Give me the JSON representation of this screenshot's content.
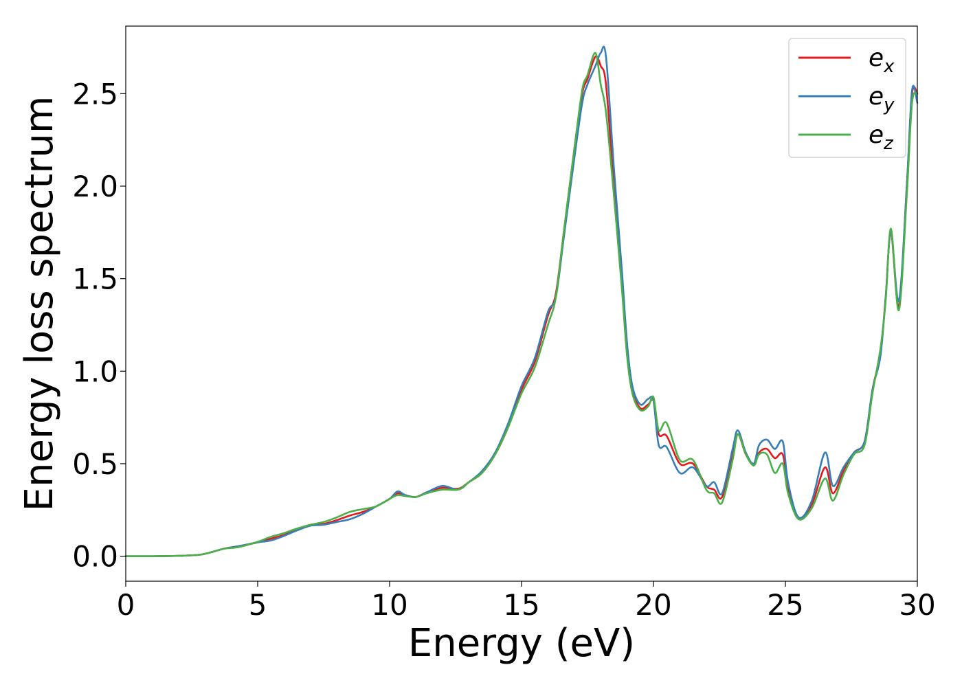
{
  "chart_data": {
    "type": "line",
    "title": "",
    "xlabel": "Energy (eV)",
    "ylabel": "Energy loss spectrum",
    "xlim": [
      0,
      30
    ],
    "ylim": [
      -0.135,
      2.865
    ],
    "xticks": [
      0,
      5,
      10,
      15,
      20,
      25,
      30
    ],
    "xtick_labels": [
      "0",
      "5",
      "10",
      "15",
      "20",
      "25",
      "30"
    ],
    "yticks": [
      0.0,
      0.5,
      1.0,
      1.5,
      2.0,
      2.5
    ],
    "ytick_labels": [
      "0.0",
      "0.5",
      "1.0",
      "1.5",
      "2.0",
      "2.5"
    ],
    "grid": false,
    "legend_position": "top-right",
    "series": [
      {
        "name": "e",
        "subscript": "x",
        "color": "#e41a1c",
        "points": [
          [
            0,
            0
          ],
          [
            1,
            0
          ],
          [
            2,
            0.002
          ],
          [
            2.8,
            0.008
          ],
          [
            3.2,
            0.02
          ],
          [
            3.7,
            0.04
          ],
          [
            4.3,
            0.055
          ],
          [
            5,
            0.075
          ],
          [
            5.5,
            0.095
          ],
          [
            6,
            0.115
          ],
          [
            6.5,
            0.145
          ],
          [
            7,
            0.17
          ],
          [
            7.5,
            0.175
          ],
          [
            8,
            0.195
          ],
          [
            8.5,
            0.22
          ],
          [
            9,
            0.24
          ],
          [
            9.5,
            0.27
          ],
          [
            10,
            0.31
          ],
          [
            10.3,
            0.34
          ],
          [
            10.6,
            0.33
          ],
          [
            11,
            0.32
          ],
          [
            11.4,
            0.345
          ],
          [
            12,
            0.37
          ],
          [
            12.6,
            0.365
          ],
          [
            13,
            0.4
          ],
          [
            13.5,
            0.45
          ],
          [
            14,
            0.55
          ],
          [
            14.5,
            0.7
          ],
          [
            15,
            0.9
          ],
          [
            15.5,
            1.05
          ],
          [
            16,
            1.3
          ],
          [
            16.3,
            1.42
          ],
          [
            16.6,
            1.75
          ],
          [
            17,
            2.2
          ],
          [
            17.3,
            2.5
          ],
          [
            17.5,
            2.58
          ],
          [
            17.8,
            2.7
          ],
          [
            18,
            2.65
          ],
          [
            18.2,
            2.55
          ],
          [
            18.5,
            2.0
          ],
          [
            18.8,
            1.5
          ],
          [
            19,
            1.1
          ],
          [
            19.2,
            0.9
          ],
          [
            19.5,
            0.8
          ],
          [
            19.8,
            0.82
          ],
          [
            20,
            0.84
          ],
          [
            20.2,
            0.66
          ],
          [
            20.5,
            0.65
          ],
          [
            21,
            0.5
          ],
          [
            21.5,
            0.5
          ],
          [
            22,
            0.38
          ],
          [
            22.3,
            0.36
          ],
          [
            22.6,
            0.32
          ],
          [
            23,
            0.55
          ],
          [
            23.2,
            0.66
          ],
          [
            23.5,
            0.55
          ],
          [
            23.8,
            0.5
          ],
          [
            24,
            0.56
          ],
          [
            24.3,
            0.58
          ],
          [
            24.6,
            0.53
          ],
          [
            24.9,
            0.55
          ],
          [
            25.1,
            0.37
          ],
          [
            25.5,
            0.21
          ],
          [
            26,
            0.28
          ],
          [
            26.5,
            0.48
          ],
          [
            26.8,
            0.34
          ],
          [
            27.2,
            0.46
          ],
          [
            27.6,
            0.56
          ],
          [
            28,
            0.62
          ],
          [
            28.3,
            0.9
          ],
          [
            28.6,
            1.1
          ],
          [
            28.8,
            1.4
          ],
          [
            29,
            1.75
          ],
          [
            29.3,
            1.35
          ],
          [
            29.6,
            2.0
          ],
          [
            29.8,
            2.5
          ],
          [
            30,
            2.5
          ]
        ]
      },
      {
        "name": "e",
        "subscript": "y",
        "color": "#377eb8",
        "points": [
          [
            0,
            0
          ],
          [
            1,
            0
          ],
          [
            2,
            0.002
          ],
          [
            2.8,
            0.008
          ],
          [
            3.2,
            0.02
          ],
          [
            3.7,
            0.04
          ],
          [
            4.3,
            0.055
          ],
          [
            5,
            0.075
          ],
          [
            5.5,
            0.085
          ],
          [
            6,
            0.11
          ],
          [
            6.5,
            0.14
          ],
          [
            7,
            0.165
          ],
          [
            7.5,
            0.17
          ],
          [
            8,
            0.185
          ],
          [
            8.5,
            0.2
          ],
          [
            9,
            0.23
          ],
          [
            9.5,
            0.27
          ],
          [
            10,
            0.31
          ],
          [
            10.3,
            0.35
          ],
          [
            10.6,
            0.33
          ],
          [
            11,
            0.32
          ],
          [
            11.4,
            0.345
          ],
          [
            12,
            0.38
          ],
          [
            12.6,
            0.36
          ],
          [
            13,
            0.4
          ],
          [
            13.5,
            0.46
          ],
          [
            14,
            0.56
          ],
          [
            14.5,
            0.72
          ],
          [
            15,
            0.92
          ],
          [
            15.5,
            1.07
          ],
          [
            16,
            1.32
          ],
          [
            16.3,
            1.4
          ],
          [
            16.6,
            1.72
          ],
          [
            17,
            2.15
          ],
          [
            17.3,
            2.45
          ],
          [
            17.5,
            2.55
          ],
          [
            17.8,
            2.65
          ],
          [
            18,
            2.72
          ],
          [
            18.2,
            2.7
          ],
          [
            18.5,
            2.1
          ],
          [
            18.8,
            1.55
          ],
          [
            19,
            1.15
          ],
          [
            19.2,
            0.92
          ],
          [
            19.5,
            0.82
          ],
          [
            19.8,
            0.85
          ],
          [
            20,
            0.84
          ],
          [
            20.2,
            0.6
          ],
          [
            20.5,
            0.59
          ],
          [
            21,
            0.45
          ],
          [
            21.5,
            0.48
          ],
          [
            22,
            0.38
          ],
          [
            22.3,
            0.4
          ],
          [
            22.6,
            0.34
          ],
          [
            23,
            0.58
          ],
          [
            23.2,
            0.68
          ],
          [
            23.5,
            0.56
          ],
          [
            23.8,
            0.5
          ],
          [
            24,
            0.6
          ],
          [
            24.3,
            0.63
          ],
          [
            24.6,
            0.58
          ],
          [
            24.9,
            0.62
          ],
          [
            25.1,
            0.4
          ],
          [
            25.5,
            0.21
          ],
          [
            26,
            0.3
          ],
          [
            26.5,
            0.56
          ],
          [
            26.8,
            0.38
          ],
          [
            27.2,
            0.48
          ],
          [
            27.6,
            0.56
          ],
          [
            28,
            0.62
          ],
          [
            28.3,
            0.9
          ],
          [
            28.6,
            1.08
          ],
          [
            28.8,
            1.4
          ],
          [
            29,
            1.75
          ],
          [
            29.3,
            1.38
          ],
          [
            29.6,
            2.0
          ],
          [
            29.8,
            2.52
          ],
          [
            30,
            2.45
          ]
        ]
      },
      {
        "name": "e",
        "subscript": "z",
        "color": "#4daf4a",
        "points": [
          [
            0,
            0
          ],
          [
            1,
            0
          ],
          [
            2,
            0.002
          ],
          [
            2.8,
            0.008
          ],
          [
            3.2,
            0.02
          ],
          [
            3.7,
            0.04
          ],
          [
            4.3,
            0.05
          ],
          [
            5,
            0.078
          ],
          [
            5.5,
            0.105
          ],
          [
            6,
            0.125
          ],
          [
            6.5,
            0.15
          ],
          [
            7,
            0.17
          ],
          [
            7.5,
            0.185
          ],
          [
            8,
            0.21
          ],
          [
            8.5,
            0.24
          ],
          [
            9,
            0.255
          ],
          [
            9.5,
            0.27
          ],
          [
            10,
            0.31
          ],
          [
            10.3,
            0.33
          ],
          [
            10.6,
            0.325
          ],
          [
            11,
            0.32
          ],
          [
            11.4,
            0.34
          ],
          [
            12,
            0.36
          ],
          [
            12.6,
            0.36
          ],
          [
            13,
            0.4
          ],
          [
            13.5,
            0.45
          ],
          [
            14,
            0.55
          ],
          [
            14.5,
            0.7
          ],
          [
            15,
            0.88
          ],
          [
            15.5,
            1.02
          ],
          [
            16,
            1.25
          ],
          [
            16.3,
            1.4
          ],
          [
            16.6,
            1.75
          ],
          [
            17,
            2.2
          ],
          [
            17.3,
            2.52
          ],
          [
            17.5,
            2.6
          ],
          [
            17.8,
            2.72
          ],
          [
            18,
            2.55
          ],
          [
            18.2,
            2.4
          ],
          [
            18.5,
            1.95
          ],
          [
            18.8,
            1.45
          ],
          [
            19,
            1.08
          ],
          [
            19.2,
            0.88
          ],
          [
            19.5,
            0.79
          ],
          [
            19.8,
            0.81
          ],
          [
            20,
            0.86
          ],
          [
            20.2,
            0.68
          ],
          [
            20.5,
            0.72
          ],
          [
            21,
            0.52
          ],
          [
            21.5,
            0.52
          ],
          [
            22,
            0.36
          ],
          [
            22.3,
            0.34
          ],
          [
            22.6,
            0.29
          ],
          [
            23,
            0.52
          ],
          [
            23.2,
            0.66
          ],
          [
            23.5,
            0.55
          ],
          [
            23.8,
            0.49
          ],
          [
            24,
            0.55
          ],
          [
            24.3,
            0.55
          ],
          [
            24.6,
            0.45
          ],
          [
            24.9,
            0.5
          ],
          [
            25.1,
            0.34
          ],
          [
            25.5,
            0.2
          ],
          [
            26,
            0.26
          ],
          [
            26.5,
            0.42
          ],
          [
            26.8,
            0.3
          ],
          [
            27.2,
            0.44
          ],
          [
            27.6,
            0.55
          ],
          [
            28,
            0.6
          ],
          [
            28.3,
            0.88
          ],
          [
            28.6,
            1.12
          ],
          [
            28.8,
            1.38
          ],
          [
            29,
            1.77
          ],
          [
            29.3,
            1.33
          ],
          [
            29.6,
            1.95
          ],
          [
            29.8,
            2.45
          ],
          [
            30,
            2.5
          ]
        ]
      }
    ]
  }
}
